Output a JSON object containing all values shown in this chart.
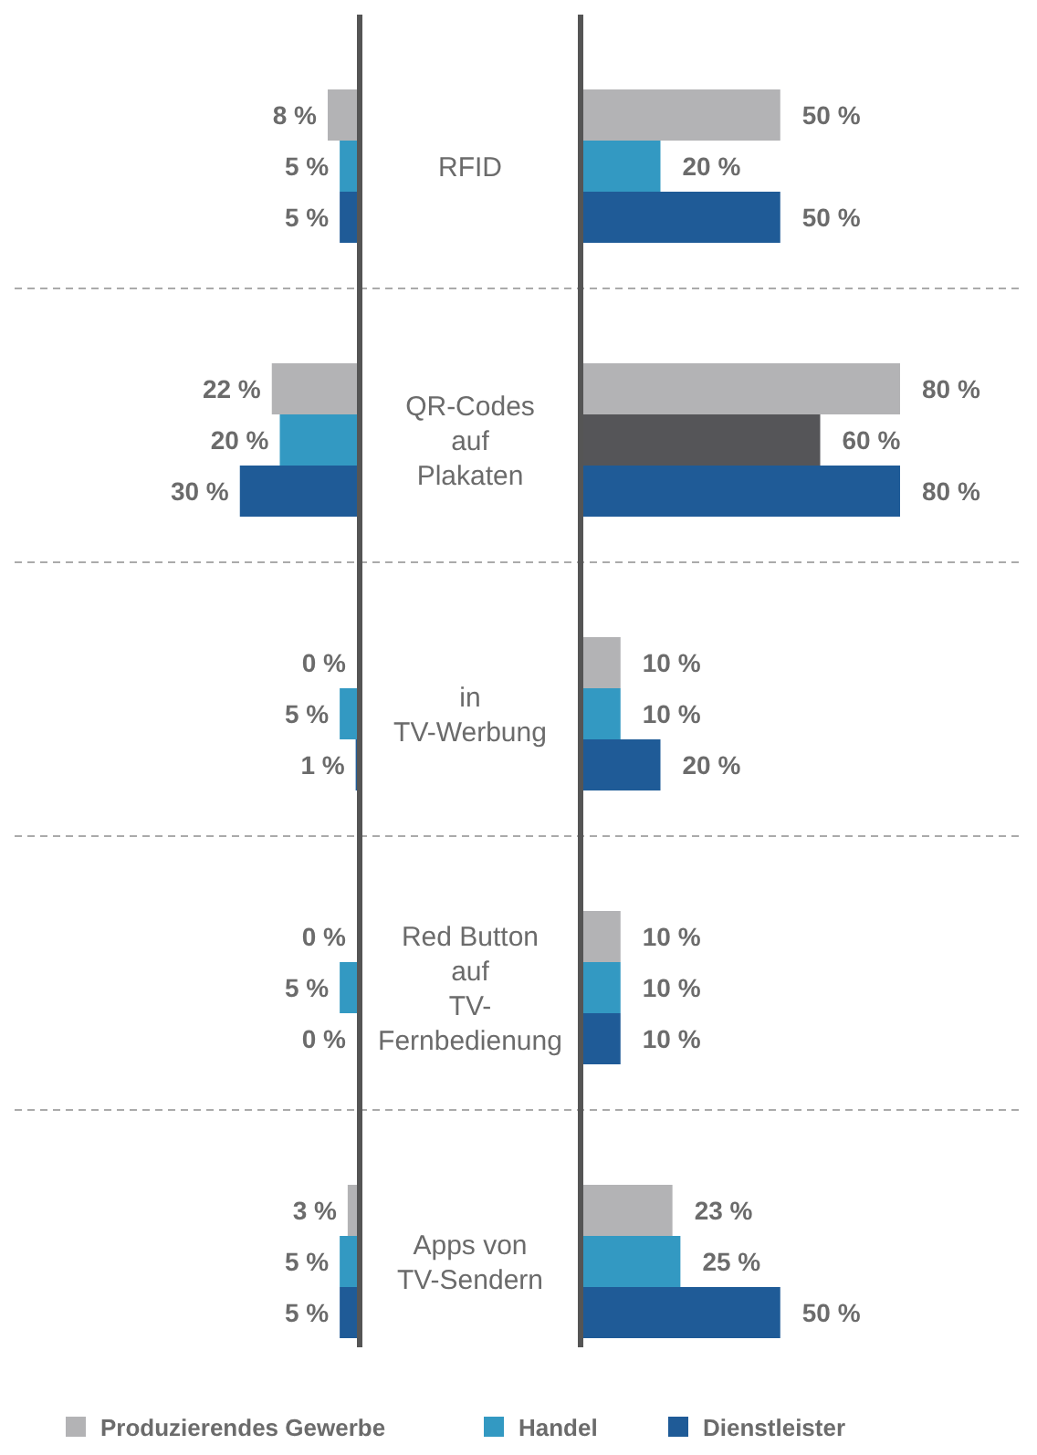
{
  "chart_data": [
    {
      "type": "bar",
      "orientation": "horizontal",
      "categories": [
        "RFID",
        "QR-Codes auf Plakaten",
        "in TV-Werbung",
        "Red Button auf TV-Fernbedienung",
        "Apps von TV-Sendern"
      ],
      "legend": "bottom",
      "series": [
        {
          "name": "Produzierendes Gewerbe",
          "color": "#b3b3b5",
          "values": [
            8,
            22,
            0,
            0,
            3
          ],
          "value_labels": [
            "8 %",
            "22 %",
            "0 %",
            "0 %",
            "3 %"
          ]
        },
        {
          "name": "Handel",
          "color": "#3399c2",
          "values": [
            5,
            20,
            5,
            5,
            5
          ],
          "value_labels": [
            "5 %",
            "20 %",
            "5 %",
            "5 %",
            "5 %"
          ]
        },
        {
          "name": "Dienstleister",
          "color": "#1f5b97",
          "values": [
            5,
            30,
            1,
            0,
            5
          ],
          "value_labels": [
            "5 %",
            "30 %",
            "1 %",
            "0 %",
            "5 %"
          ]
        }
      ]
    },
    {
      "type": "bar",
      "orientation": "horizontal",
      "categories": [
        null,
        null,
        null,
        null,
        null
      ],
      "series": [
        {
          "color": "#b3b3b5",
          "values": [
            50,
            80,
            10,
            10,
            23
          ],
          "value_labels": [
            "50 %",
            "80 %",
            "10 %",
            "10 %",
            "23 %"
          ]
        },
        {
          "color": "#3399c2",
          "colors": [
            null,
            "#555558",
            null,
            null,
            null
          ],
          "values": [
            20,
            60,
            10,
            10,
            25
          ],
          "value_labels": [
            "20 %",
            "60 %",
            "10 %",
            "10 %",
            "25 %"
          ]
        },
        {
          "color": "#1f5b97",
          "values": [
            50,
            80,
            20,
            10,
            50
          ],
          "value_labels": [
            "50 %",
            "80 %",
            "20 %",
            "10 %",
            "50 %"
          ]
        }
      ]
    }
  ]
}
